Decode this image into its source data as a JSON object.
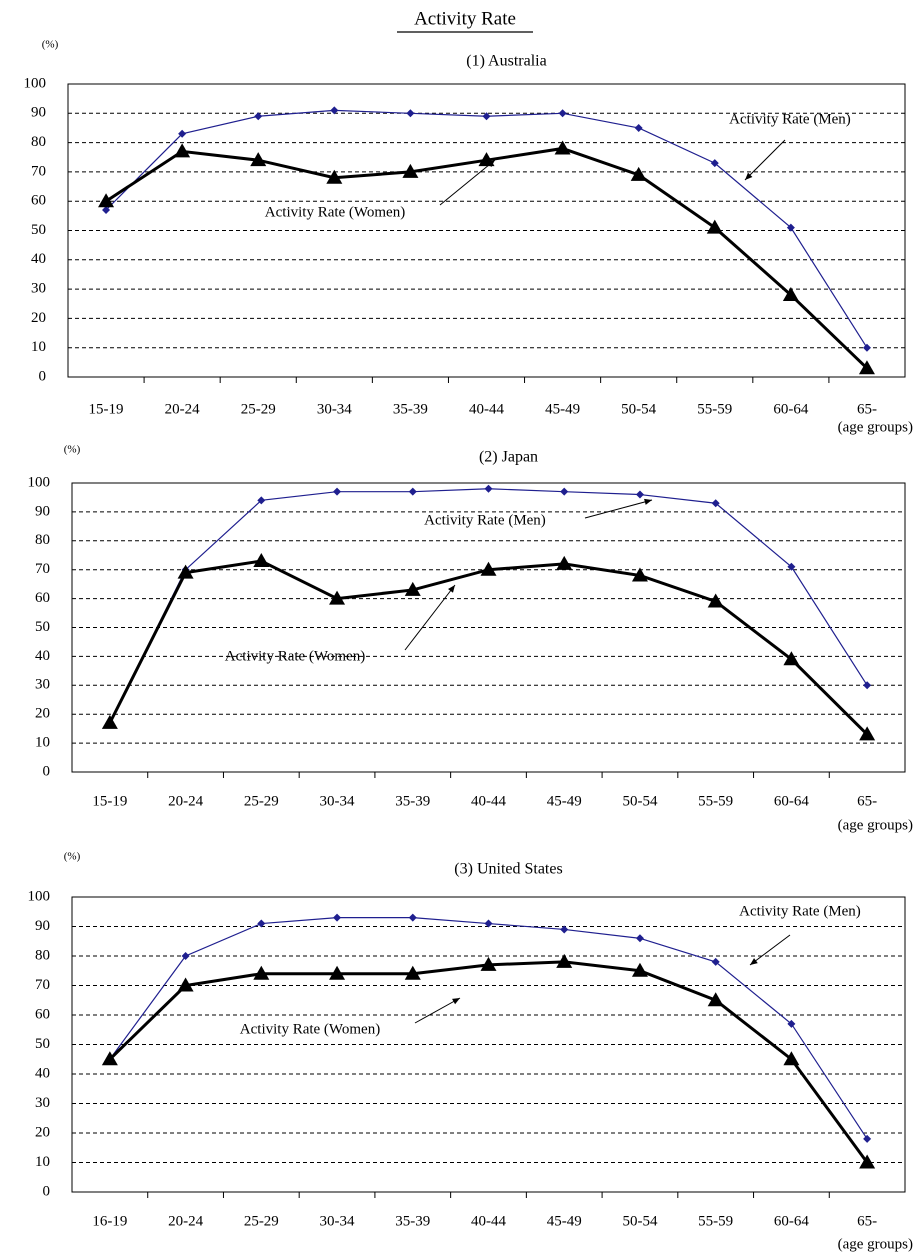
{
  "title": "Activity Rate",
  "chart_data": [
    {
      "type": "line",
      "title": "(1) Australia",
      "y_unit": "(%)",
      "x_label": "(age groups)",
      "categories": [
        "15-19",
        "20-24",
        "25-29",
        "30-34",
        "35-39",
        "40-44",
        "45-49",
        "50-54",
        "55-59",
        "60-64",
        "65-"
      ],
      "series": [
        {
          "name": "Activity Rate (Men)",
          "color": "#1f1f8f",
          "marker": "diamond",
          "values": [
            57,
            83,
            89,
            91,
            90,
            89,
            90,
            85,
            73,
            51,
            10
          ]
        },
        {
          "name": "Activity Rate (Women)",
          "color": "#000000",
          "marker": "triangle",
          "values": [
            60,
            77,
            74,
            68,
            70,
            74,
            78,
            69,
            51,
            28,
            3
          ]
        }
      ],
      "ylim": [
        0,
        100
      ],
      "yticks": [
        0,
        10,
        20,
        30,
        40,
        50,
        60,
        70,
        80,
        90,
        100
      ],
      "grid": true
    },
    {
      "type": "line",
      "title": "(2) Japan",
      "y_unit": "(%)",
      "x_label": "(age groups)",
      "categories": [
        "15-19",
        "20-24",
        "25-29",
        "30-34",
        "35-39",
        "40-44",
        "45-49",
        "50-54",
        "55-59",
        "60-64",
        "65-"
      ],
      "series": [
        {
          "name": "Activity Rate (Men)",
          "color": "#1f1f8f",
          "marker": "diamond",
          "values": [
            17,
            70,
            94,
            97,
            97,
            98,
            97,
            96,
            93,
            71,
            30
          ]
        },
        {
          "name": "Activity Rate (Women)",
          "color": "#000000",
          "marker": "triangle",
          "values": [
            17,
            69,
            73,
            60,
            63,
            70,
            72,
            68,
            59,
            39,
            13
          ]
        }
      ],
      "ylim": [
        0,
        100
      ],
      "yticks": [
        0,
        10,
        20,
        30,
        40,
        50,
        60,
        70,
        80,
        90,
        100
      ],
      "grid": true
    },
    {
      "type": "line",
      "title": "(3) United States",
      "y_unit": "(%)",
      "x_label": "(age groups)",
      "categories": [
        "16-19",
        "20-24",
        "25-29",
        "30-34",
        "35-39",
        "40-44",
        "45-49",
        "50-54",
        "55-59",
        "60-64",
        "65-"
      ],
      "series": [
        {
          "name": "Activity Rate (Men)",
          "color": "#1f1f8f",
          "marker": "diamond",
          "values": [
            45,
            80,
            91,
            93,
            93,
            91,
            89,
            86,
            78,
            57,
            18
          ]
        },
        {
          "name": "Activity Rate (Women)",
          "color": "#000000",
          "marker": "triangle",
          "values": [
            45,
            70,
            74,
            74,
            74,
            77,
            78,
            75,
            65,
            45,
            10
          ]
        }
      ],
      "ylim": [
        0,
        100
      ],
      "yticks": [
        0,
        10,
        20,
        30,
        40,
        50,
        60,
        70,
        80,
        90,
        100
      ],
      "grid": true
    }
  ]
}
